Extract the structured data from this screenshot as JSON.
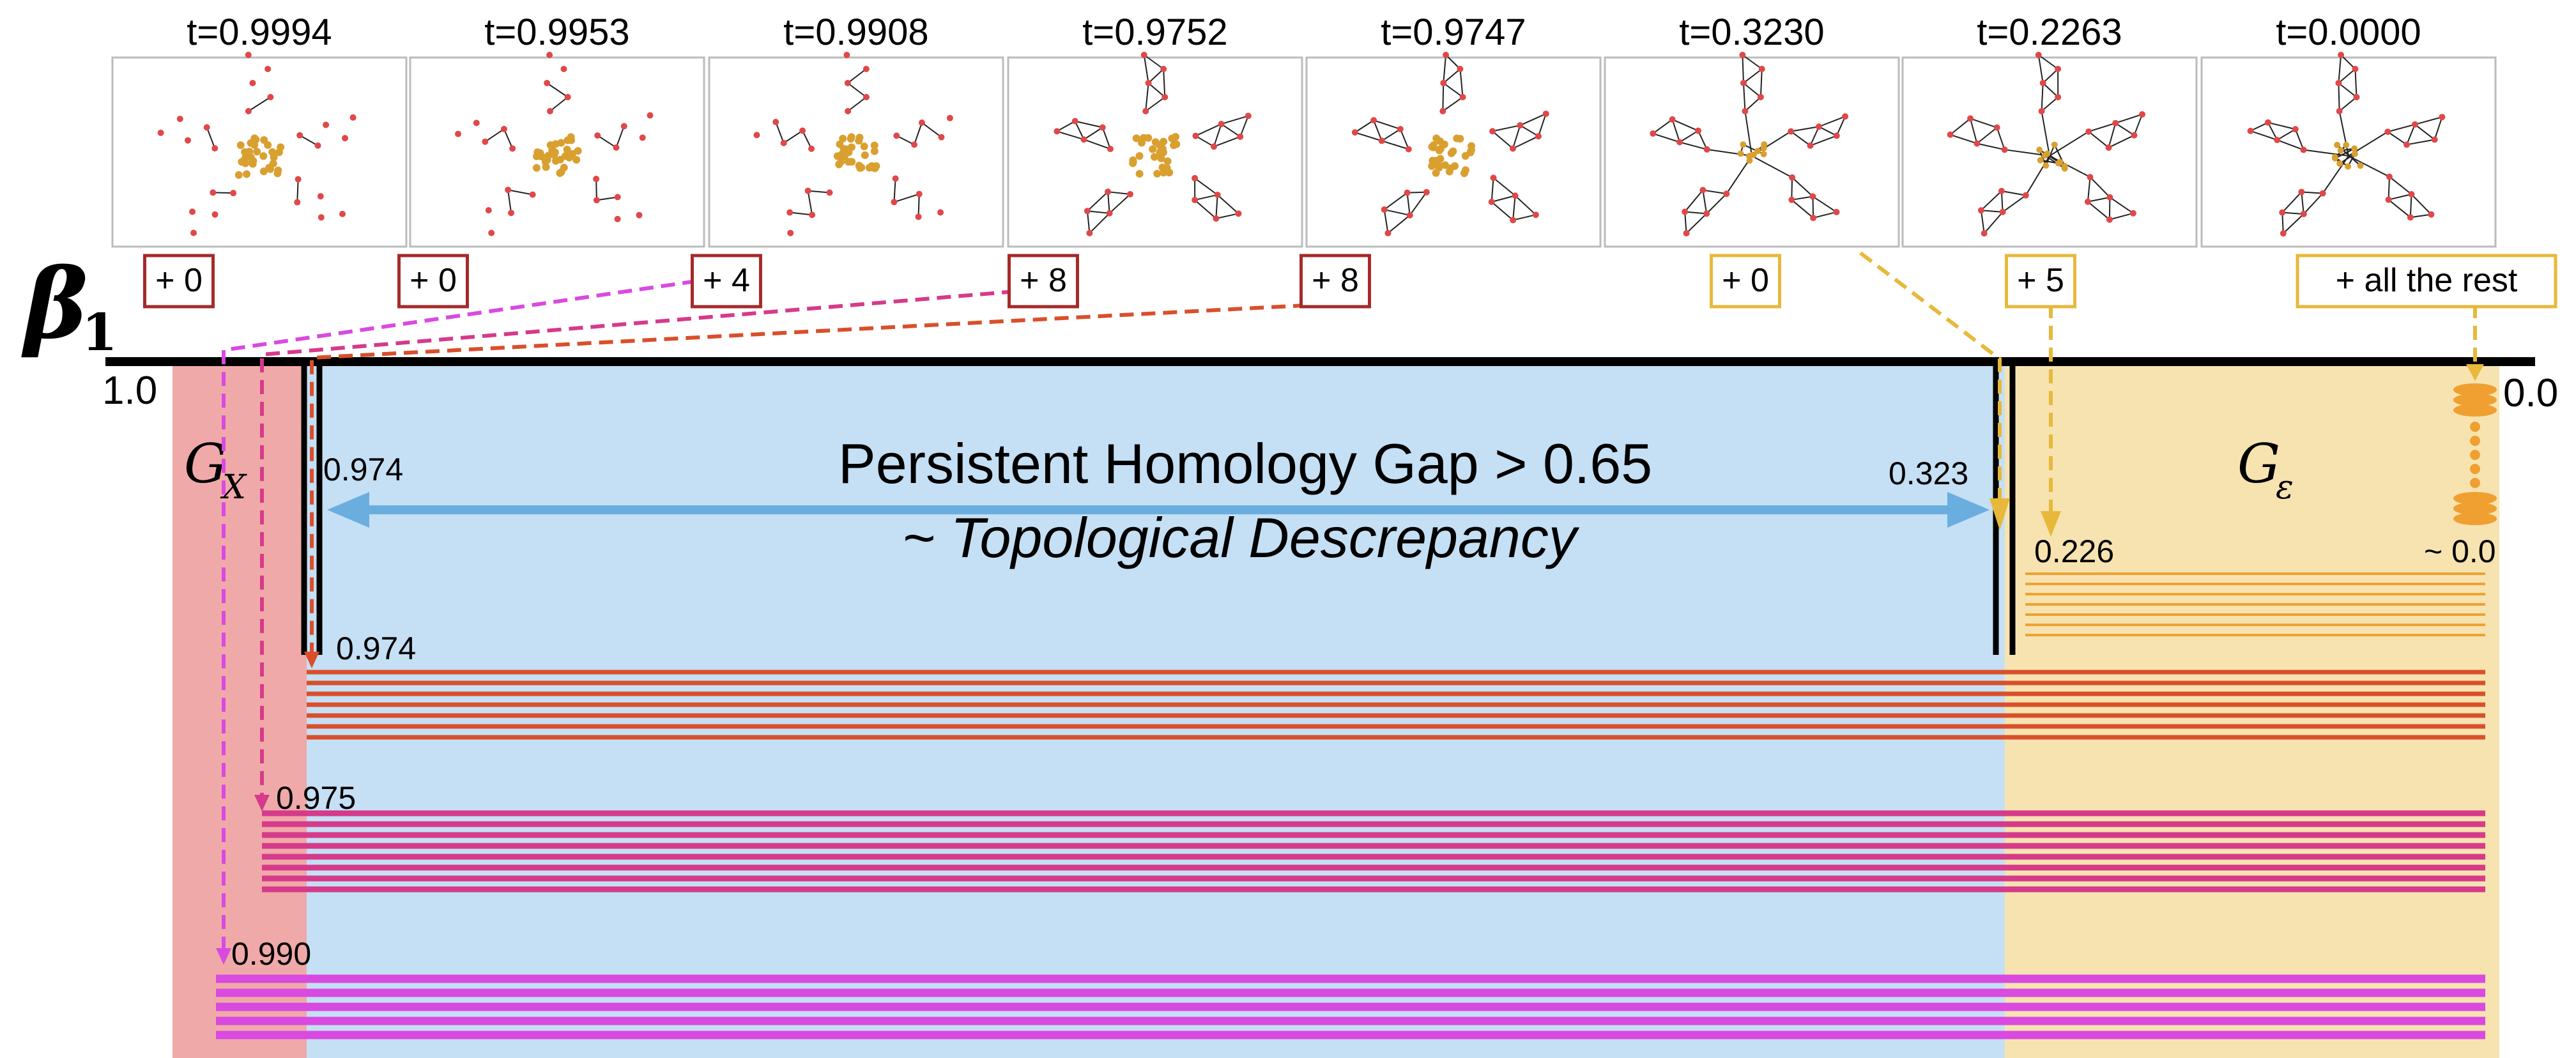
{
  "beta_label": {
    "symbol": "β",
    "sub": "1"
  },
  "snapshots": [
    {
      "t": "t=0.9994",
      "badge": "+ 0",
      "badge_color": "#a52a2a"
    },
    {
      "t": "t=0.9953",
      "badge": "+ 0",
      "badge_color": "#a52a2a"
    },
    {
      "t": "t=0.9908",
      "badge": "+ 4",
      "badge_color": "#a52a2a"
    },
    {
      "t": "t=0.9752",
      "badge": "+ 8",
      "badge_color": "#a52a2a"
    },
    {
      "t": "t=0.9747",
      "badge": "+ 8",
      "badge_color": "#a52a2a"
    },
    {
      "t": "t=0.3230",
      "badge": "+ 0",
      "badge_color": "#e8b83a"
    },
    {
      "t": "t=0.2263",
      "badge": "+ 5",
      "badge_color": "#e8b83a"
    },
    {
      "t": "t=0.0000",
      "badge": "+ all the rest",
      "badge_color": "#e8b83a"
    }
  ],
  "axis": {
    "left_label": "1.0",
    "right_label": "0.0"
  },
  "regions": {
    "gx": {
      "label_main": "G",
      "label_sub": "X",
      "color": "#f0a9a9"
    },
    "gap": {
      "color": "#c5dff4"
    },
    "geps": {
      "label_main": "G",
      "label_sub": "ε",
      "color": "#f7e3b0"
    }
  },
  "gap_text": {
    "title": "Persistent Homology Gap > 0.65",
    "subtitle": "~ Topological Descrepancy",
    "left_value": "0.974",
    "right_value": "0.323"
  },
  "bar_groups": [
    {
      "label": "0.974",
      "color": "#d94f2b"
    },
    {
      "label": "0.975",
      "color": "#d63a8a"
    },
    {
      "label": "0.990",
      "color": "#d84ae0"
    },
    {
      "label": "0.226",
      "color": "#f0a030"
    },
    {
      "label": "~ 0.0",
      "color": "#f0b050"
    }
  ],
  "colors": {
    "red_node": "#e04848",
    "gold_node": "#d9a030",
    "gap_arrow": "#6aaee0",
    "gold_arrow": "#e8b83a"
  }
}
